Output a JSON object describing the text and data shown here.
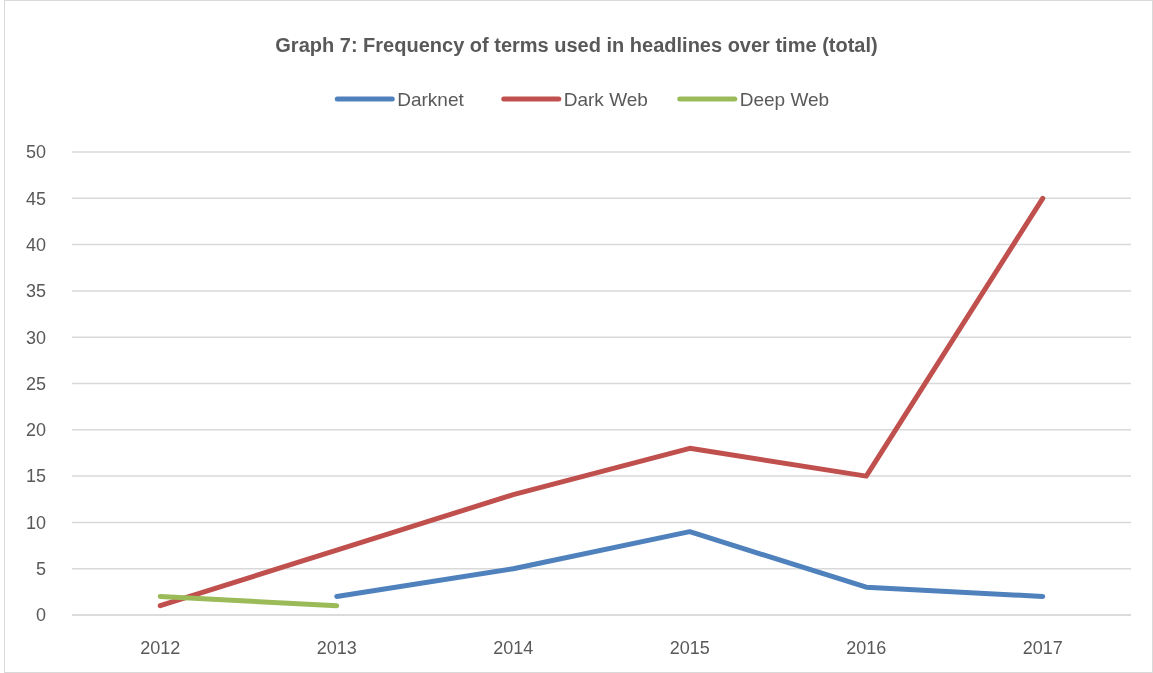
{
  "chart_data": {
    "type": "line",
    "title": "Graph 7: Frequency of terms used in headlines over time (total)",
    "categories": [
      "2012",
      "2013",
      "2014",
      "2015",
      "2016",
      "2017"
    ],
    "series": [
      {
        "name": "Darknet",
        "color": "#4f81bd",
        "values": [
          null,
          2,
          5,
          9,
          3,
          2
        ]
      },
      {
        "name": "Dark Web",
        "color": "#c0504d",
        "values": [
          1,
          7,
          13,
          18,
          15,
          45
        ]
      },
      {
        "name": "Deep Web",
        "color": "#9bbb59",
        "values": [
          2,
          1,
          null,
          null,
          null,
          null
        ]
      }
    ],
    "ylim": [
      0,
      50
    ],
    "yticks": [
      0,
      5,
      10,
      15,
      20,
      25,
      30,
      35,
      40,
      45,
      50
    ],
    "grid": "y",
    "legend": "top",
    "marker": "none",
    "line_style": "solid"
  }
}
